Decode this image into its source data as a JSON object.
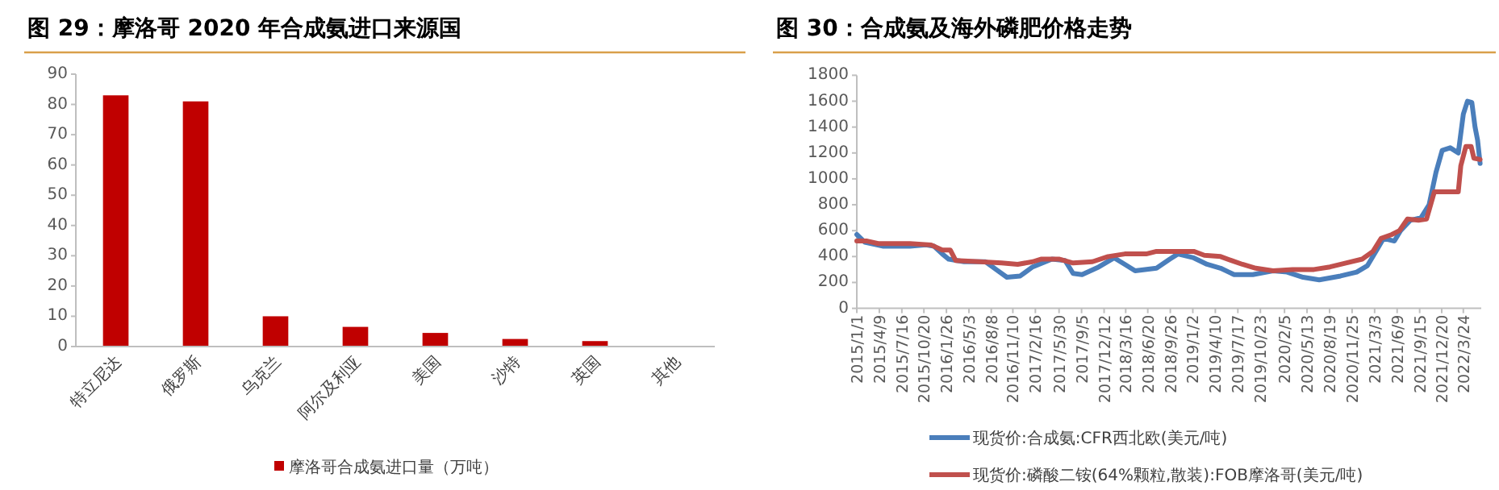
{
  "chart_data": [
    {
      "type": "bar",
      "title": "图 29：摩洛哥 2020 年合成氨进口来源国",
      "categories": [
        "特立尼达",
        "俄罗斯",
        "乌克兰",
        "阿尔及利亚",
        "美国",
        "沙特",
        "英国",
        "其他"
      ],
      "series": [
        {
          "name": "摩洛哥合成氨进口量（万吨）",
          "color": "#c00000",
          "values": [
            83,
            81,
            10,
            6.5,
            4.5,
            2.5,
            1.8,
            0
          ]
        }
      ],
      "ylim": [
        0,
        90
      ],
      "yticks": [
        0,
        10,
        20,
        30,
        40,
        50,
        60,
        70,
        80,
        90
      ],
      "legend": "bottom"
    },
    {
      "type": "line",
      "title": "图 30：合成氨及海外磷肥价格走势",
      "series": [
        {
          "name": "现货价:合成氨:CFR西北欧(美元/吨)",
          "color": "#4a7ebb",
          "x": [
            "2015-01-01",
            "2015-02-05",
            "2015-04-27",
            "2015-08-20",
            "2015-10-29",
            "2015-12-03",
            "2016-01-08",
            "2016-02-05",
            "2016-04-12",
            "2016-07-14",
            "2016-08-29",
            "2016-10-15",
            "2016-12-12",
            "2017-02-04",
            "2017-04-29",
            "2017-06-25",
            "2017-07-30",
            "2017-09-07",
            "2017-11-19",
            "2018-01-25",
            "2018-03-12",
            "2018-04-26",
            "2018-07-28",
            "2018-09-24",
            "2018-10-29",
            "2019-01-06",
            "2019-03-05",
            "2019-05-03",
            "2019-07-01",
            "2019-09-20",
            "2019-12-17",
            "2020-02-16",
            "2020-04-26",
            "2020-07-05",
            "2020-10-06",
            "2020-12-15",
            "2021-01-31",
            "2021-03-19",
            "2021-04-11",
            "2021-05-28",
            "2021-06-24",
            "2021-08-05",
            "2021-09-21",
            "2021-10-26",
            "2021-11-25",
            "2021-12-22",
            "2022-01-26",
            "2022-03-02",
            "2022-03-24",
            "2022-04-11",
            "2022-04-30",
            "2022-05-14",
            "2022-05-25",
            "2022-06-05"
          ],
          "values": [
            570,
            510,
            480,
            480,
            490,
            480,
            420,
            380,
            360,
            360,
            300,
            240,
            250,
            320,
            380,
            370,
            270,
            260,
            320,
            390,
            340,
            290,
            310,
            380,
            420,
            390,
            340,
            310,
            260,
            260,
            290,
            280,
            240,
            220,
            250,
            280,
            330,
            470,
            540,
            520,
            600,
            680,
            700,
            800,
            1050,
            1220,
            1240,
            1200,
            1500,
            1600,
            1590,
            1400,
            1300,
            1120
          ]
        },
        {
          "name": "现货价:磷酸二铵(64%颗粒,散装):FOB摩洛哥(美元/吨)",
          "color": "#c0504d",
          "x": [
            "2015-01-01",
            "2015-02-15",
            "2015-04-04",
            "2015-08-20",
            "2015-11-20",
            "2016-01-08",
            "2016-02-12",
            "2016-03-06",
            "2016-06-20",
            "2016-09-22",
            "2016-12-01",
            "2017-02-04",
            "2017-03-12",
            "2017-06-01",
            "2017-07-30",
            "2017-10-22",
            "2017-12-29",
            "2018-03-12",
            "2018-06-13",
            "2018-07-28",
            "2018-10-05",
            "2019-01-06",
            "2019-02-21",
            "2019-05-03",
            "2019-06-18",
            "2019-08-06",
            "2019-10-03",
            "2019-12-17",
            "2020-03-11",
            "2020-06-12",
            "2020-08-21",
            "2020-10-29",
            "2021-01-08",
            "2021-02-24",
            "2021-03-31",
            "2021-05-17",
            "2021-06-19",
            "2021-07-24",
            "2021-09-10",
            "2021-10-15",
            "2021-11-18",
            "2022-01-15",
            "2022-03-02",
            "2022-03-13",
            "2022-04-04",
            "2022-04-27",
            "2022-05-09",
            "2022-06-05"
          ],
          "values": [
            520,
            520,
            500,
            500,
            490,
            450,
            450,
            370,
            360,
            350,
            340,
            360,
            380,
            380,
            350,
            360,
            400,
            420,
            420,
            440,
            440,
            440,
            410,
            400,
            370,
            340,
            310,
            290,
            300,
            300,
            320,
            350,
            380,
            440,
            540,
            570,
            600,
            690,
            680,
            690,
            900,
            900,
            900,
            1100,
            1250,
            1250,
            1160,
            1150
          ]
        }
      ],
      "xlim": [
        "2015-01-01",
        "2022-06-10"
      ],
      "xticks": [
        {
          "value": "2015-01-01",
          "label": "2015/1/1"
        },
        {
          "value": "2015-04-09",
          "label": "2015/4/9"
        },
        {
          "value": "2015-07-16",
          "label": "2015/7/16"
        },
        {
          "value": "2015-10-20",
          "label": "2015/10/20"
        },
        {
          "value": "2016-01-26",
          "label": "2016/1/26"
        },
        {
          "value": "2016-05-03",
          "label": "2016/5/3"
        },
        {
          "value": "2016-08-08",
          "label": "2016/8/8"
        },
        {
          "value": "2016-11-10",
          "label": "2016/11/10"
        },
        {
          "value": "2017-02-16",
          "label": "2017/2/16"
        },
        {
          "value": "2017-05-30",
          "label": "2017/5/30"
        },
        {
          "value": "2017-09-05",
          "label": "2017/9/5"
        },
        {
          "value": "2017-12-12",
          "label": "2017/12/12"
        },
        {
          "value": "2018-03-16",
          "label": "2018/3/16"
        },
        {
          "value": "2018-06-20",
          "label": "2018/6/20"
        },
        {
          "value": "2018-09-26",
          "label": "2018/9/26"
        },
        {
          "value": "2019-01-02",
          "label": "2019/1/2"
        },
        {
          "value": "2019-04-10",
          "label": "2019/4/10"
        },
        {
          "value": "2019-07-17",
          "label": "2019/7/17"
        },
        {
          "value": "2019-10-23",
          "label": "2019/10/23"
        },
        {
          "value": "2020-02-05",
          "label": "2020/2/5"
        },
        {
          "value": "2020-05-13",
          "label": "2020/5/13"
        },
        {
          "value": "2020-08-19",
          "label": "2020/8/19"
        },
        {
          "value": "2020-11-25",
          "label": "2020/11/25"
        },
        {
          "value": "2021-03-03",
          "label": "2021/3/3"
        },
        {
          "value": "2021-06-09",
          "label": "2021/6/9"
        },
        {
          "value": "2021-09-15",
          "label": "2021/9/15"
        },
        {
          "value": "2021-12-20",
          "label": "2021/12/20"
        },
        {
          "value": "2022-03-24",
          "label": "2022/3/24"
        }
      ],
      "ylim": [
        0,
        1800
      ],
      "yticks": [
        0,
        200,
        400,
        600,
        800,
        1000,
        1200,
        1400,
        1600,
        1800
      ],
      "legend": "bottom"
    }
  ]
}
